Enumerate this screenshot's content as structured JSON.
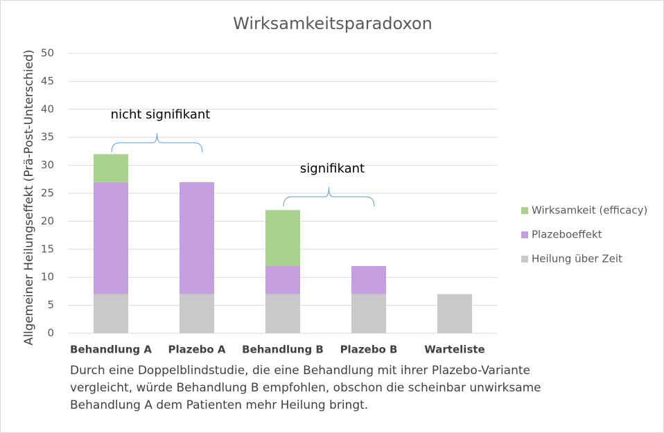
{
  "chart_data": {
    "type": "stacked_bar",
    "title": "Wirksamkeitsparadoxon",
    "y_label": "Allgemeiner Heilungseffekt (Prä-Post-Unterschied)",
    "categories": [
      "Behandlung A",
      "Plazebo A",
      "Behandlung B",
      "Plazebo B",
      "Warteliste"
    ],
    "series": [
      {
        "name": "Heilung über Zeit",
        "color": "#c9c9c9",
        "values": [
          7,
          7,
          7,
          7,
          7
        ]
      },
      {
        "name": "Plazeboeffekt",
        "color": "#c59ee0",
        "values": [
          20,
          20,
          5,
          5,
          0
        ]
      },
      {
        "name": "Wirksamkeit (efficacy)",
        "color": "#a9d18e",
        "values": [
          5,
          0,
          10,
          0,
          0
        ]
      }
    ],
    "ylim": [
      0,
      50
    ],
    "yticks": [
      0,
      5,
      10,
      15,
      20,
      25,
      30,
      35,
      40,
      45,
      50
    ],
    "grid": true,
    "legend": "right",
    "annotations": [
      "nicht signifikant",
      "signifikant"
    ],
    "caption": [
      "Durch eine Doppelblindstudie, die eine Behandlung mit ihrer Plazebo-Variante",
      "vergleicht, würde Behandlung B empfohlen, obschon die scheinbar unwirksame",
      "Behandlung A dem Patienten mehr Heilung bringt."
    ]
  }
}
